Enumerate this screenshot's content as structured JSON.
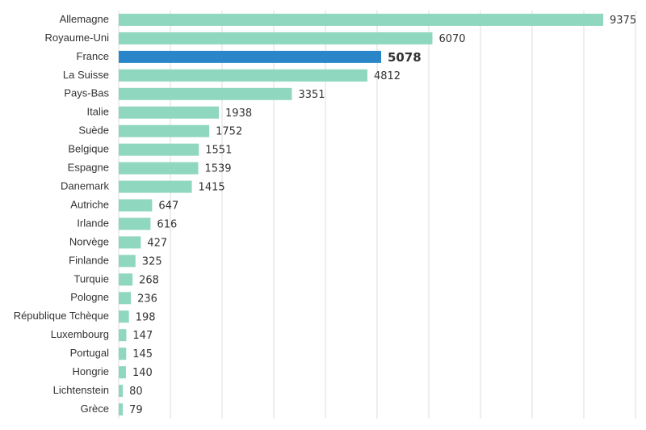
{
  "chart_data": {
    "type": "hbar",
    "categories": [
      "Allemagne",
      "Royaume-Uni",
      "France",
      "La Suisse",
      "Pays-Bas",
      "Italie",
      "Suède",
      "Belgique",
      "Espagne",
      "Danemark",
      "Autriche",
      "Irlande",
      "Norvège",
      "Finlande",
      "Turquie",
      "Pologne",
      "République Tchèque",
      "Luxembourg",
      "Portugal",
      "Hongrie",
      "Lichtenstein",
      "Grèce"
    ],
    "values": [
      9375,
      6070,
      5078,
      4812,
      3351,
      1938,
      1752,
      1551,
      1539,
      1415,
      647,
      616,
      427,
      325,
      268,
      236,
      198,
      147,
      145,
      140,
      80,
      79
    ],
    "color": "#8fd7bf",
    "highlight": "France",
    "highlight_color": "#2a86c8",
    "xlim": [
      0,
      10000
    ],
    "xticks": [
      0,
      1000,
      2000,
      3000,
      4000,
      5000,
      6000,
      7000,
      8000,
      9000,
      10000
    ],
    "grid": true
  }
}
